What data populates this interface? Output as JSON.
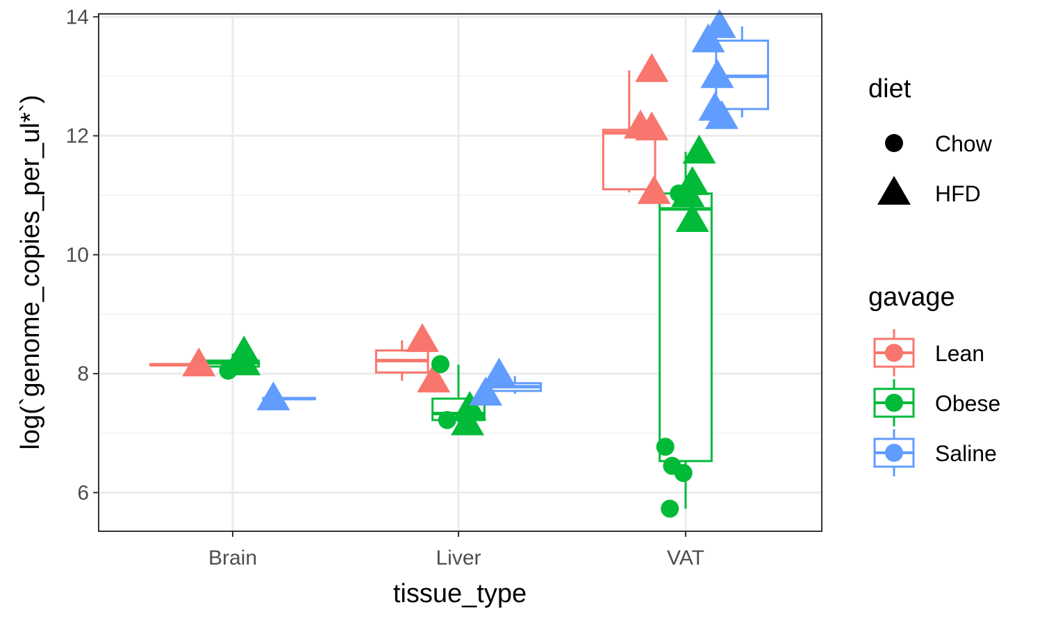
{
  "chart_data": {
    "type": "boxplot",
    "xlabel": "tissue_type",
    "ylabel": "log(`genome_copies_per_ul*`)",
    "categories": [
      "Brain",
      "Liver",
      "VAT"
    ],
    "ylim": [
      5.35,
      14.05
    ],
    "yticks": [
      6,
      8,
      10,
      12,
      14
    ],
    "grid": true,
    "legend_position": "right",
    "legends": {
      "diet": {
        "title": "diet",
        "items": [
          {
            "label": "Chow",
            "shape": "circle"
          },
          {
            "label": "HFD",
            "shape": "triangle"
          }
        ]
      },
      "gavage": {
        "title": "gavage",
        "items": [
          {
            "label": "Lean",
            "color": "#F8766D"
          },
          {
            "label": "Obese",
            "color": "#00BA38"
          },
          {
            "label": "Saline",
            "color": "#619CFF"
          }
        ]
      }
    },
    "series": [
      {
        "name": "Lean",
        "color": "#F8766D"
      },
      {
        "name": "Obese",
        "color": "#00BA38"
      },
      {
        "name": "Saline",
        "color": "#619CFF"
      }
    ],
    "boxes": [
      {
        "tissue": "Brain",
        "gavage": "Lean",
        "min": 8.14,
        "q1": 8.14,
        "median": 8.15,
        "q3": 8.16,
        "max": 8.17
      },
      {
        "tissue": "Brain",
        "gavage": "Obese",
        "min": 8.05,
        "q1": 8.12,
        "median": 8.18,
        "q3": 8.22,
        "max": 8.34
      },
      {
        "tissue": "Brain",
        "gavage": "Saline",
        "min": 7.57,
        "q1": 7.58,
        "median": 7.58,
        "q3": 7.59,
        "max": 7.6
      },
      {
        "tissue": "Liver",
        "gavage": "Lean",
        "min": 7.88,
        "q1": 8.02,
        "median": 8.22,
        "q3": 8.39,
        "max": 8.56
      },
      {
        "tissue": "Liver",
        "gavage": "Obese",
        "min": 7.18,
        "q1": 7.22,
        "median": 7.33,
        "q3": 7.58,
        "max": 8.15
      },
      {
        "tissue": "Liver",
        "gavage": "Saline",
        "min": 7.66,
        "q1": 7.71,
        "median": 7.78,
        "q3": 7.84,
        "max": 7.96
      },
      {
        "tissue": "VAT",
        "gavage": "Lean",
        "min": 11.05,
        "q1": 11.1,
        "median": 12.05,
        "q3": 12.1,
        "max": 13.1
      },
      {
        "tissue": "VAT",
        "gavage": "Obese",
        "min": 5.73,
        "q1": 6.53,
        "median": 10.77,
        "q3": 11.03,
        "max": 11.73
      },
      {
        "tissue": "VAT",
        "gavage": "Saline",
        "min": 12.31,
        "q1": 12.45,
        "median": 13.0,
        "q3": 13.6,
        "max": 13.84
      }
    ],
    "points": [
      {
        "tissue": "Brain",
        "gavage": "Lean",
        "diet": "HFD",
        "offset": -0.15,
        "y": 8.15
      },
      {
        "tissue": "Brain",
        "gavage": "Obese",
        "diet": "Chow",
        "offset": -0.02,
        "y": 8.05
      },
      {
        "tissue": "Brain",
        "gavage": "Obese",
        "diet": "HFD",
        "offset": 0.05,
        "y": 8.17
      },
      {
        "tissue": "Brain",
        "gavage": "Obese",
        "diet": "HFD",
        "offset": 0.05,
        "y": 8.35
      },
      {
        "tissue": "Brain",
        "gavage": "Saline",
        "diet": "HFD",
        "offset": 0.18,
        "y": 7.58
      },
      {
        "tissue": "Liver",
        "gavage": "Lean",
        "diet": "HFD",
        "offset": -0.16,
        "y": 8.56
      },
      {
        "tissue": "Liver",
        "gavage": "Lean",
        "diet": "HFD",
        "offset": -0.11,
        "y": 7.88
      },
      {
        "tissue": "Liver",
        "gavage": "Obese",
        "diet": "Chow",
        "offset": -0.08,
        "y": 8.16
      },
      {
        "tissue": "Liver",
        "gavage": "Obese",
        "diet": "Chow",
        "offset": -0.05,
        "y": 7.22
      },
      {
        "tissue": "Liver",
        "gavage": "Obese",
        "diet": "HFD",
        "offset": 0.05,
        "y": 7.42
      },
      {
        "tissue": "Liver",
        "gavage": "Obese",
        "diet": "HFD",
        "offset": 0.04,
        "y": 7.16
      },
      {
        "tissue": "Liver",
        "gavage": "Saline",
        "diet": "HFD",
        "offset": 0.12,
        "y": 7.66
      },
      {
        "tissue": "Liver",
        "gavage": "Saline",
        "diet": "HFD",
        "offset": 0.18,
        "y": 7.98
      },
      {
        "tissue": "VAT",
        "gavage": "Lean",
        "diet": "HFD",
        "offset": -0.15,
        "y": 13.1
      },
      {
        "tissue": "VAT",
        "gavage": "Lean",
        "diet": "HFD",
        "offset": -0.2,
        "y": 12.15
      },
      {
        "tissue": "VAT",
        "gavage": "Lean",
        "diet": "HFD",
        "offset": -0.15,
        "y": 12.12
      },
      {
        "tissue": "VAT",
        "gavage": "Lean",
        "diet": "HFD",
        "offset": -0.14,
        "y": 11.05
      },
      {
        "tissue": "VAT",
        "gavage": "Obese",
        "diet": "Chow",
        "offset": -0.09,
        "y": 6.77
      },
      {
        "tissue": "VAT",
        "gavage": "Obese",
        "diet": "Chow",
        "offset": -0.06,
        "y": 6.45
      },
      {
        "tissue": "VAT",
        "gavage": "Obese",
        "diet": "Chow",
        "offset": -0.01,
        "y": 6.33
      },
      {
        "tissue": "VAT",
        "gavage": "Obese",
        "diet": "Chow",
        "offset": -0.07,
        "y": 5.73
      },
      {
        "tissue": "VAT",
        "gavage": "Obese",
        "diet": "Chow",
        "offset": -0.03,
        "y": 11.03
      },
      {
        "tissue": "VAT",
        "gavage": "Obese",
        "diet": "HFD",
        "offset": 0.06,
        "y": 11.73
      },
      {
        "tissue": "VAT",
        "gavage": "Obese",
        "diet": "HFD",
        "offset": 0.03,
        "y": 11.2
      },
      {
        "tissue": "VAT",
        "gavage": "Obese",
        "diet": "HFD",
        "offset": 0.01,
        "y": 11.0
      },
      {
        "tissue": "VAT",
        "gavage": "Obese",
        "diet": "HFD",
        "offset": 0.03,
        "y": 10.58
      },
      {
        "tissue": "VAT",
        "gavage": "Saline",
        "diet": "HFD",
        "offset": 0.1,
        "y": 13.6
      },
      {
        "tissue": "VAT",
        "gavage": "Saline",
        "diet": "HFD",
        "offset": 0.15,
        "y": 13.84
      },
      {
        "tissue": "VAT",
        "gavage": "Saline",
        "diet": "HFD",
        "offset": 0.14,
        "y": 13.0
      },
      {
        "tissue": "VAT",
        "gavage": "Saline",
        "diet": "HFD",
        "offset": 0.13,
        "y": 12.45
      },
      {
        "tissue": "VAT",
        "gavage": "Saline",
        "diet": "HFD",
        "offset": 0.16,
        "y": 12.31
      }
    ]
  }
}
